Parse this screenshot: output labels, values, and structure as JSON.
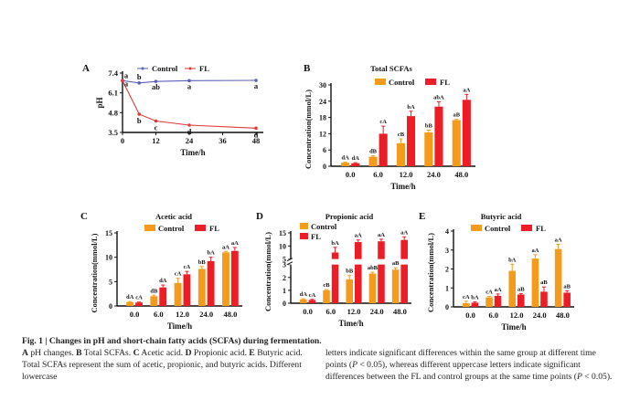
{
  "colors": {
    "control_line": "#5a5fb8",
    "fl_line": "#e03a3a",
    "control_bar": "#f59b1b",
    "fl_bar": "#ee1c24",
    "axis": "#111111"
  },
  "chart_data": [
    {
      "panel": "A",
      "type": "line",
      "title": "",
      "xlabel": "Time/h",
      "ylabel": "pH",
      "x": [
        0,
        6,
        12,
        24,
        48
      ],
      "xticks": [
        0,
        12,
        24,
        36,
        48
      ],
      "yticks": [
        3.5,
        4.8,
        6.1,
        7.4
      ],
      "ylim": [
        3.5,
        7.4
      ],
      "xlim": [
        0,
        48
      ],
      "legend": [
        "Control",
        "FL"
      ],
      "legend_position": "top",
      "series": [
        {
          "name": "Control",
          "values": [
            6.9,
            6.75,
            6.85,
            6.9,
            6.92
          ],
          "labels": [
            "a",
            "b",
            "ab",
            "a",
            "a"
          ]
        },
        {
          "name": "FL",
          "values": [
            6.9,
            4.7,
            4.25,
            3.98,
            3.78
          ],
          "labels": [
            "a",
            "b",
            "c",
            "d",
            "d"
          ]
        }
      ]
    },
    {
      "panel": "B",
      "type": "bar",
      "title": "Total SCFAs",
      "xlabel": "Time/h",
      "ylabel": "Concentration(mmol/L)",
      "categories": [
        "0.0",
        "6.0",
        "12.0",
        "24.0",
        "48.0"
      ],
      "yticks": [
        0,
        6,
        12,
        18,
        24,
        30
      ],
      "ylim": [
        0,
        30
      ],
      "legend": [
        "Control",
        "FL"
      ],
      "legend_position": "top",
      "series": [
        {
          "name": "Control",
          "values": [
            1.3,
            3.5,
            8.5,
            12.5,
            17.0
          ],
          "errors": [
            0.2,
            0.3,
            1.6,
            0.8,
            0.3
          ],
          "labels": [
            "dA",
            "dB",
            "cB",
            "bB",
            "aB"
          ]
        },
        {
          "name": "FL",
          "values": [
            1.1,
            12.0,
            18.5,
            22.0,
            24.5
          ],
          "errors": [
            0.2,
            2.8,
            1.8,
            1.8,
            2.0
          ],
          "labels": [
            "dA",
            "cA",
            "bA",
            "abA",
            "aA"
          ]
        }
      ]
    },
    {
      "panel": "C",
      "type": "bar",
      "title": "Acetic acid",
      "xlabel": "Time/h",
      "ylabel": "Concentration(mmol/L)",
      "categories": [
        "0.0",
        "6.0",
        "12.0",
        "24.0",
        "48.0"
      ],
      "yticks": [
        0,
        5,
        10,
        15
      ],
      "ylim": [
        0,
        15
      ],
      "legend": [
        "Control",
        "FL"
      ],
      "legend_position": "top",
      "series": [
        {
          "name": "Control",
          "values": [
            0.8,
            2.0,
            4.7,
            7.6,
            11.0
          ],
          "errors": [
            0.1,
            0.2,
            1.0,
            0.5,
            0.2
          ],
          "labels": [
            "dA",
            "dB",
            "cA",
            "bB",
            "aA"
          ]
        },
        {
          "name": "FL",
          "values": [
            0.7,
            3.8,
            6.5,
            9.2,
            11.3
          ],
          "errors": [
            0.1,
            0.5,
            0.6,
            0.8,
            0.7
          ],
          "labels": [
            "cA",
            "dA",
            "cA",
            "bA",
            "aA"
          ]
        }
      ]
    },
    {
      "panel": "D",
      "type": "bar",
      "title": "Propionic acid",
      "xlabel": "Time/h",
      "ylabel": "Concentration(mmol/L)",
      "categories": [
        "0.0",
        "6.0",
        "12.0",
        "24.0",
        "48.0"
      ],
      "yticks": [
        0,
        1,
        2,
        3,
        5,
        10,
        15
      ],
      "ylim": [
        0,
        15
      ],
      "axis_break": [
        3,
        5
      ],
      "legend": [
        "Control",
        "FL"
      ],
      "legend_position": "top-left",
      "series": [
        {
          "name": "Control",
          "values": [
            0.3,
            1.0,
            1.85,
            2.3,
            2.6
          ],
          "errors": [
            0.05,
            0.05,
            0.3,
            0.1,
            0.15
          ],
          "labels": [
            "dA",
            "cB",
            "bB",
            "abB",
            "aB"
          ]
        },
        {
          "name": "FL",
          "values": [
            0.25,
            7.5,
            11.5,
            11.8,
            12.3
          ],
          "errors": [
            0.05,
            2.0,
            0.8,
            0.8,
            1.2
          ],
          "labels": [
            "cA",
            "bA",
            "aA",
            "aA",
            "aA"
          ]
        }
      ]
    },
    {
      "panel": "E",
      "type": "bar",
      "title": "Butyric acid",
      "xlabel": "Time/h",
      "ylabel": "Concentration(mmol/L)",
      "categories": [
        "0.0",
        "6.0",
        "12.0",
        "24.0",
        "48.0"
      ],
      "yticks": [
        0,
        1,
        2,
        3,
        4
      ],
      "ylim": [
        0,
        4
      ],
      "legend": [
        "Control",
        "FL"
      ],
      "legend_position": "top",
      "series": [
        {
          "name": "Control",
          "values": [
            0.2,
            0.5,
            1.9,
            2.55,
            3.05
          ],
          "errors": [
            0.1,
            0.05,
            0.35,
            0.2,
            0.25
          ],
          "labels": [
            "cA",
            "cA",
            "bA",
            "aA",
            "aA"
          ]
        },
        {
          "name": "FL",
          "values": [
            0.22,
            0.58,
            0.65,
            0.8,
            0.75
          ],
          "errors": [
            0.05,
            0.1,
            0.05,
            0.25,
            0.1
          ],
          "labels": [
            "bA",
            "aA",
            "aB",
            "aB",
            "aB"
          ]
        }
      ]
    }
  ],
  "caption": {
    "title": "Fig. 1 | Changes in pH and short-chain fatty acids (SCFAs) during fermentation.",
    "left_parts": [
      {
        "b": "A",
        "t": " pH changes. "
      },
      {
        "b": "B",
        "t": " Total SCFAs. "
      },
      {
        "b": "C",
        "t": " Acetic acid. "
      },
      {
        "b": "D",
        "t": " Propionic acid. "
      },
      {
        "b": "E",
        "t": " Butyric acid. Total SCFAs represent the sum of acetic, propionic, and butyric acids. Different lowercase"
      }
    ],
    "right_1": "letters indicate significant differences within the same group at different time points (",
    "p1": "P",
    "right_2": " < 0.05), whereas different uppercase letters indicate significant differences between the FL and control groups at the same time points (",
    "p2": "P",
    "right_3": " < 0.05)."
  }
}
